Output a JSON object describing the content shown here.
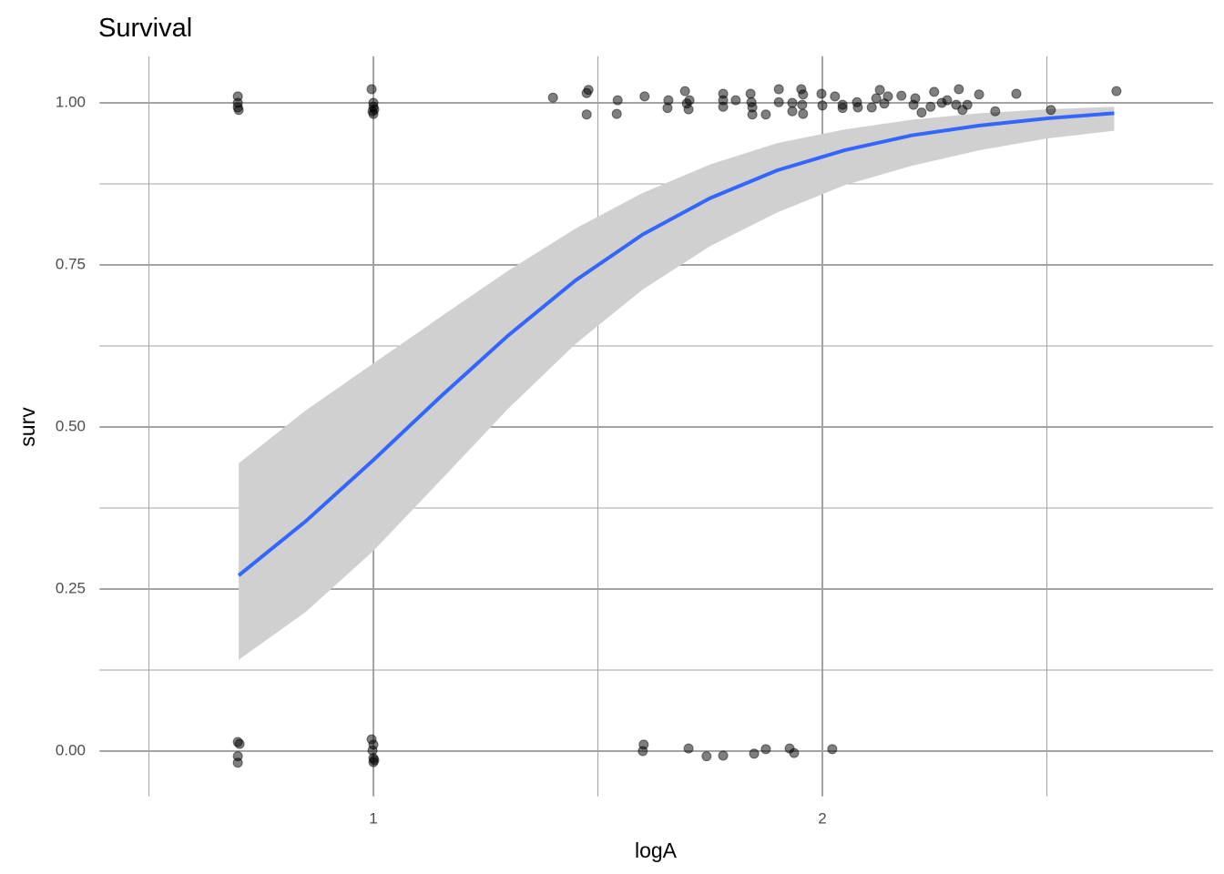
{
  "chart_data": {
    "type": "scatter",
    "title": "Survival",
    "xlabel": "logA",
    "ylabel": "surv",
    "xlim": [
      0.39,
      2.87
    ],
    "ylim": [
      -0.07,
      1.072
    ],
    "xticks": [
      1,
      2
    ],
    "x_minor_ticks": [
      0.5,
      1.5,
      2.5
    ],
    "yticks": [
      {
        "value": 0,
        "label": "0.00"
      },
      {
        "value": 0.25,
        "label": "0.25"
      },
      {
        "value": 0.5,
        "label": "0.50"
      },
      {
        "value": 0.75,
        "label": "0.75"
      },
      {
        "value": 1,
        "label": "1.00"
      }
    ],
    "y_minor_ticks": [
      0.125,
      0.375,
      0.625,
      0.875
    ],
    "grid": true,
    "series": [
      {
        "color": "#000000",
        "opacity": 0.5,
        "x": [
          0.698,
          0.698,
          0.698,
          0.7,
          0.996,
          1.0,
          1.0,
          0.998,
          1.0,
          1.002,
          1.4,
          1.475,
          1.479,
          1.475,
          1.544,
          1.542,
          1.604,
          1.657,
          1.655,
          1.694,
          1.704,
          1.698,
          1.702,
          1.779,
          1.779,
          1.779,
          1.807,
          1.84,
          1.842,
          1.844,
          1.844,
          1.874,
          1.903,
          1.903,
          1.933,
          1.933,
          1.953,
          1.957,
          1.955,
          1.957,
          1.998,
          2.0,
          2.028,
          2.045,
          2.045,
          2.077,
          2.079,
          2.11,
          2.12,
          2.128,
          2.138,
          2.146,
          2.176,
          2.203,
          2.207,
          2.221,
          2.249,
          2.241,
          2.266,
          2.278,
          2.304,
          2.298,
          2.312,
          2.323,
          2.349,
          2.385,
          2.432,
          2.509,
          2.655,
          0.698,
          0.702,
          0.698,
          0.698,
          0.996,
          1.0,
          0.998,
          1.0,
          1.0,
          1.002,
          1.602,
          1.6,
          1.702,
          1.742,
          1.779,
          1.848,
          1.874,
          1.927,
          1.937,
          2.022
        ],
        "values": [
          1.01,
          1.0,
          0.993,
          0.989,
          1.021,
          1.0,
          0.994,
          0.987,
          0.983,
          0.99,
          1.008,
          1.015,
          1.02,
          0.982,
          1.004,
          0.983,
          1.01,
          1.004,
          0.992,
          1.018,
          1.004,
          0.999,
          0.99,
          1.014,
          1.004,
          0.994,
          1.004,
          1.014,
          1.001,
          0.993,
          0.982,
          0.982,
          1.021,
          1.001,
          1.0,
          0.987,
          1.021,
          1.013,
          0.997,
          0.983,
          1.014,
          0.996,
          1.01,
          0.997,
          0.992,
          1.001,
          0.993,
          0.993,
          1.007,
          1.02,
          0.999,
          1.01,
          1.011,
          0.997,
          1.007,
          0.985,
          1.017,
          0.994,
          1.0,
          1.004,
          1.021,
          0.997,
          0.989,
          0.997,
          1.013,
          0.987,
          1.014,
          0.989,
          1.018,
          0.014,
          0.011,
          -0.008,
          -0.018,
          0.018,
          0.01,
          0.001,
          -0.011,
          -0.017,
          -0.014,
          0.01,
          0.0,
          0.004,
          -0.008,
          -0.007,
          -0.004,
          0.003,
          0.004,
          -0.003,
          0.003
        ]
      }
    ],
    "smooth": {
      "color": "#3366ff",
      "fill": "#d0d0d0",
      "x": [
        0.7,
        0.85,
        1.0,
        1.15,
        1.3,
        1.45,
        1.6,
        1.75,
        1.9,
        2.05,
        2.2,
        2.35,
        2.5,
        2.65
      ],
      "values": [
        0.271,
        0.355,
        0.449,
        0.547,
        0.641,
        0.726,
        0.797,
        0.853,
        0.896,
        0.927,
        0.95,
        0.965,
        0.976,
        0.984
      ],
      "ymin": [
        0.141,
        0.215,
        0.309,
        0.418,
        0.528,
        0.628,
        0.712,
        0.779,
        0.831,
        0.873,
        0.903,
        0.927,
        0.945,
        0.957
      ],
      "ymax": [
        0.444,
        0.526,
        0.598,
        0.67,
        0.741,
        0.806,
        0.861,
        0.905,
        0.938,
        0.959,
        0.974,
        0.984,
        0.99,
        0.994
      ]
    }
  }
}
